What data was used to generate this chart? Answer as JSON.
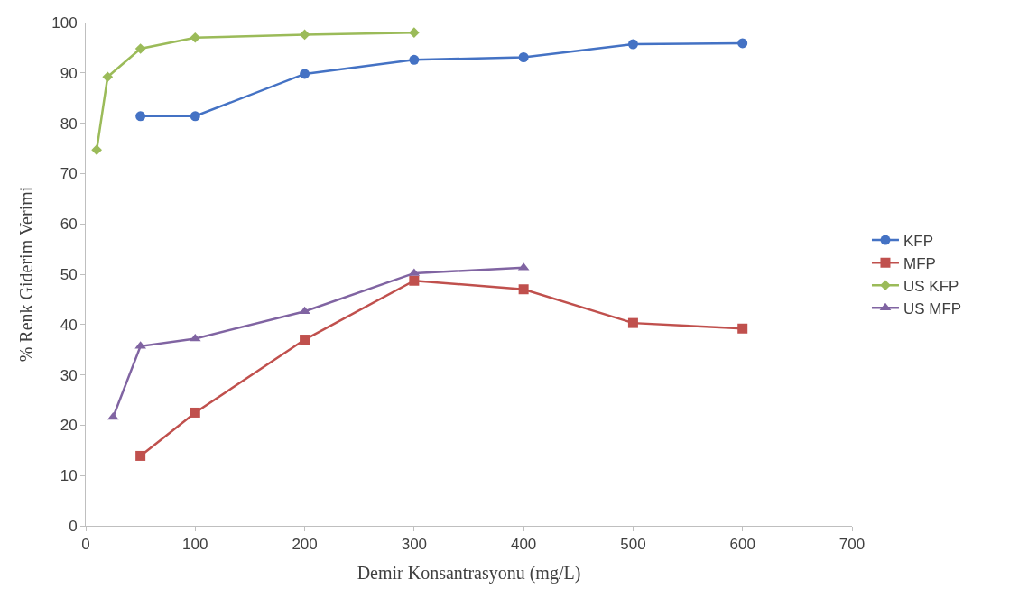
{
  "chart_data": {
    "type": "line",
    "xlabel": "Demir Konsantrasyonu (mg/L)",
    "ylabel": "% Renk Giderim Verimi",
    "xlim": [
      0,
      700
    ],
    "xticks": [
      0,
      100,
      200,
      300,
      400,
      500,
      600,
      700
    ],
    "ylim": [
      0,
      100
    ],
    "yticks": [
      0,
      10,
      20,
      30,
      40,
      50,
      60,
      70,
      80,
      90,
      100
    ],
    "legend": "right",
    "line_style": "solid",
    "series": [
      {
        "name": "KFP",
        "color": "#4472c4",
        "marker": "circle",
        "x": [
          50,
          100,
          200,
          300,
          400,
          500,
          600
        ],
        "values": [
          81.4,
          81.4,
          89.8,
          92.6,
          93.1,
          95.7,
          95.9
        ]
      },
      {
        "name": "MFP",
        "color": "#c0504d",
        "marker": "square",
        "x": [
          50,
          100,
          200,
          300,
          400,
          500,
          600
        ],
        "values": [
          13.9,
          22.5,
          37.0,
          48.7,
          47.0,
          40.3,
          39.2
        ]
      },
      {
        "name": "US KFP",
        "color": "#9bbb59",
        "marker": "diamond",
        "x": [
          10,
          20,
          50,
          100,
          200,
          300
        ],
        "values": [
          74.7,
          89.2,
          94.8,
          97.0,
          97.6,
          98.0
        ]
      },
      {
        "name": "US MFP",
        "color": "#8064a2",
        "marker": "triangle",
        "x": [
          25,
          50,
          100,
          200,
          300,
          400
        ],
        "values": [
          21.6,
          35.7,
          37.2,
          42.6,
          50.2,
          51.3
        ]
      }
    ]
  }
}
